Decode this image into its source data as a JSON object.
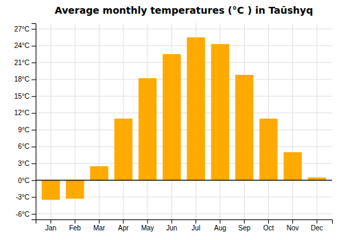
{
  "chart_data": {
    "type": "bar",
    "title": "Average monthly temperatures (°C ) in Taūshyq",
    "categories": [
      "Jan",
      "Feb",
      "Mar",
      "Apr",
      "May",
      "Jun",
      "Jul",
      "Aug",
      "Sep",
      "Oct",
      "Nov",
      "Dec"
    ],
    "values": [
      -3.5,
      -3.3,
      2.5,
      11.0,
      18.2,
      22.5,
      25.5,
      24.3,
      18.8,
      11.0,
      5.0,
      0.5
    ],
    "color": "#FFAA00",
    "ylim": [
      -7,
      28
    ],
    "yticks": [
      {
        "value": -6,
        "label": "-6°C"
      },
      {
        "value": -3,
        "label": "-3°C"
      },
      {
        "value": 0,
        "label": "0°C"
      },
      {
        "value": 3,
        "label": "3°C"
      },
      {
        "value": 6,
        "label": "6°C"
      },
      {
        "value": 9,
        "label": "9°C"
      },
      {
        "value": 12,
        "label": "12°C"
      },
      {
        "value": 15,
        "label": "15°C"
      },
      {
        "value": 18,
        "label": "18°C"
      },
      {
        "value": 21,
        "label": "21°C"
      },
      {
        "value": 24,
        "label": "24°C"
      },
      {
        "value": 27,
        "label": "27°C"
      }
    ],
    "grid": true
  }
}
